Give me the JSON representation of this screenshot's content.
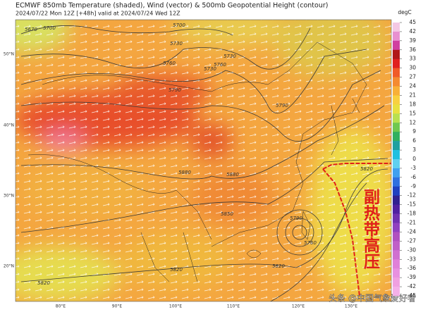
{
  "header": {
    "title": "ECMWF 850mb Temperature (shaded), Wind (vector) & 500mb Geopotential Height (contour)",
    "subtitle": "2024/07/22 Mon 12Z [+48h] valid at 2024/07/24 Wed 12Z"
  },
  "colorbar": {
    "label": "degC",
    "ticks": [
      45,
      42,
      39,
      36,
      33,
      30,
      27,
      24,
      21,
      18,
      15,
      12,
      9,
      6,
      3,
      0,
      -3,
      -6,
      -9,
      -12,
      -15,
      -18,
      -21,
      -24,
      -27,
      -30,
      -33,
      -36,
      -39,
      -42,
      -45
    ]
  },
  "lat_labels": [
    "50°N",
    "40°N",
    "30°N",
    "20°N"
  ],
  "lon_labels": [
    "80°E",
    "90°E",
    "100°E",
    "110°E",
    "120°E",
    "130°E"
  ],
  "contour_labels": [
    "5670",
    "5700",
    "5700",
    "5730",
    "5760",
    "5730",
    "5790",
    "5730",
    "5760",
    "5790",
    "5820",
    "5880",
    "5850",
    "5880",
    "5820",
    "5790",
    "5760",
    "5820",
    "5820"
  ],
  "annotation": "副热带高压",
  "watermark": "头条 @中国气象爱好者"
}
